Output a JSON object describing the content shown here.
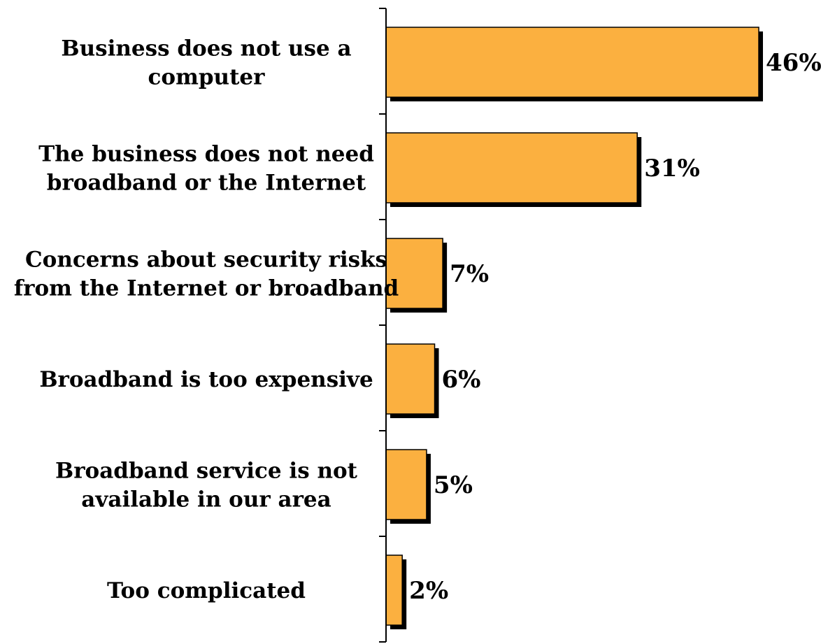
{
  "chart_data": {
    "type": "bar",
    "orientation": "horizontal",
    "categories": [
      [
        "Business does not use a",
        "computer"
      ],
      [
        "The business does not need",
        "broadband or the Internet"
      ],
      [
        "Concerns about security risks",
        "from the Internet or broadband"
      ],
      [
        "Broadband is too expensive"
      ],
      [
        "Broadband service is not",
        "available in our area"
      ],
      [
        "Too complicated"
      ]
    ],
    "values": [
      46,
      31,
      7,
      6,
      5,
      2
    ],
    "value_labels": [
      "46%",
      "31%",
      "7%",
      "6%",
      "5%",
      "2%"
    ],
    "unit": "%",
    "xlim": [
      0,
      46
    ],
    "grid": false,
    "legend": "none",
    "colors": {
      "bar": "#FBB040",
      "bar_edge": "#000000",
      "shadow": "#000000",
      "axis": "#000000"
    }
  }
}
